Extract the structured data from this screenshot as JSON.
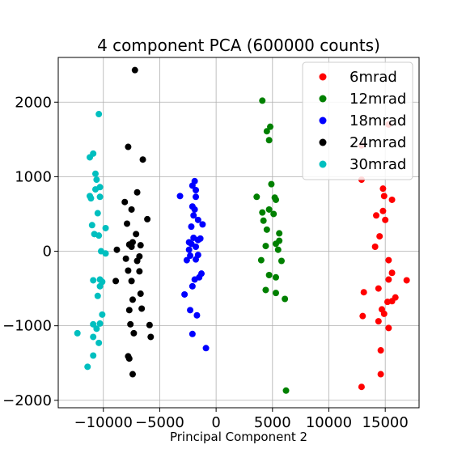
{
  "chart_data": {
    "type": "scatter",
    "title": "4 component PCA (600000 counts)",
    "xlabel": "Principal Component 2",
    "ylabel": "",
    "xlim": [
      -14000,
      18000
    ],
    "ylim": [
      -2100,
      2600
    ],
    "xticks": [
      -10000,
      -5000,
      0,
      5000,
      10000,
      15000
    ],
    "yticks": [
      -2000,
      -1000,
      0,
      1000,
      2000
    ],
    "grid": true,
    "legend_position": "top-right",
    "series": [
      {
        "name": "6mrad",
        "color": "#ff0000",
        "points": [
          [
            12900,
            1420
          ],
          [
            15300,
            1700
          ],
          [
            12900,
            960
          ],
          [
            14800,
            840
          ],
          [
            14900,
            740
          ],
          [
            15600,
            690
          ],
          [
            14800,
            540
          ],
          [
            14200,
            480
          ],
          [
            15000,
            420
          ],
          [
            14500,
            200
          ],
          [
            14100,
            60
          ],
          [
            15300,
            -120
          ],
          [
            15600,
            -290
          ],
          [
            16900,
            -390
          ],
          [
            15300,
            -380
          ],
          [
            14400,
            -500
          ],
          [
            13100,
            -550
          ],
          [
            15900,
            -620
          ],
          [
            15600,
            -670
          ],
          [
            15200,
            -680
          ],
          [
            14700,
            -780
          ],
          [
            13000,
            -870
          ],
          [
            14900,
            -840
          ],
          [
            14400,
            -940
          ],
          [
            15300,
            -1030
          ],
          [
            14600,
            -1330
          ],
          [
            14600,
            -1650
          ],
          [
            12900,
            -1820
          ]
        ]
      },
      {
        "name": "12mrad",
        "color": "#008000",
        "points": [
          [
            4100,
            2020
          ],
          [
            4500,
            1610
          ],
          [
            4800,
            1670
          ],
          [
            4700,
            1490
          ],
          [
            4900,
            900
          ],
          [
            3600,
            730
          ],
          [
            5200,
            720
          ],
          [
            5300,
            690
          ],
          [
            4100,
            520
          ],
          [
            4700,
            560
          ],
          [
            5100,
            500
          ],
          [
            4200,
            410
          ],
          [
            4500,
            290
          ],
          [
            5600,
            240
          ],
          [
            5600,
            140
          ],
          [
            5300,
            100
          ],
          [
            4400,
            70
          ],
          [
            5500,
            20
          ],
          [
            4000,
            -120
          ],
          [
            5800,
            -130
          ],
          [
            4700,
            -320
          ],
          [
            5300,
            -350
          ],
          [
            4400,
            -520
          ],
          [
            5300,
            -560
          ],
          [
            6100,
            -640
          ],
          [
            6200,
            -1870
          ]
        ]
      },
      {
        "name": "18mrad",
        "color": "#0000ff",
        "points": [
          [
            -1900,
            940
          ],
          [
            -2100,
            880
          ],
          [
            -1800,
            820
          ],
          [
            -3200,
            740
          ],
          [
            -1800,
            730
          ],
          [
            -2100,
            600
          ],
          [
            -1900,
            560
          ],
          [
            -2000,
            480
          ],
          [
            -1600,
            420
          ],
          [
            -2200,
            330
          ],
          [
            -1200,
            360
          ],
          [
            -2000,
            180
          ],
          [
            -1600,
            150
          ],
          [
            -1400,
            170
          ],
          [
            -2200,
            100
          ],
          [
            -2400,
            120
          ],
          [
            -1800,
            60
          ],
          [
            -2400,
            20
          ],
          [
            -1600,
            -50
          ],
          [
            -2300,
            -60
          ],
          [
            -1800,
            -110
          ],
          [
            -2600,
            -120
          ],
          [
            -1300,
            -300
          ],
          [
            -1500,
            -350
          ],
          [
            -1900,
            -380
          ],
          [
            -2100,
            -470
          ],
          [
            -2800,
            -580
          ],
          [
            -2300,
            -790
          ],
          [
            -1700,
            -860
          ],
          [
            -2100,
            -1110
          ],
          [
            -900,
            -1300
          ]
        ]
      },
      {
        "name": "24mrad",
        "color": "#000000",
        "points": [
          [
            -7200,
            2430
          ],
          [
            -7800,
            1400
          ],
          [
            -6500,
            1230
          ],
          [
            -7000,
            790
          ],
          [
            -8100,
            660
          ],
          [
            -7500,
            560
          ],
          [
            -6100,
            430
          ],
          [
            -7900,
            370
          ],
          [
            -7100,
            230
          ],
          [
            -7700,
            90
          ],
          [
            -7400,
            120
          ],
          [
            -7500,
            60
          ],
          [
            -6700,
            80
          ],
          [
            -8800,
            20
          ],
          [
            -6800,
            -70
          ],
          [
            -8000,
            -100
          ],
          [
            -7000,
            -130
          ],
          [
            -7800,
            -260
          ],
          [
            -6800,
            -270
          ],
          [
            -8900,
            -400
          ],
          [
            -7500,
            -400
          ],
          [
            -6700,
            -570
          ],
          [
            -7400,
            -650
          ],
          [
            -7700,
            -790
          ],
          [
            -6600,
            -770
          ],
          [
            -5900,
            -990
          ],
          [
            -7600,
            -980
          ],
          [
            -7300,
            -1100
          ],
          [
            -7800,
            -1410
          ],
          [
            -7700,
            -1440
          ],
          [
            -5800,
            -1150
          ],
          [
            -7400,
            -1650
          ]
        ]
      },
      {
        "name": "30mrad",
        "color": "#00bfbf",
        "points": [
          [
            -10400,
            1840
          ],
          [
            -10900,
            1310
          ],
          [
            -11200,
            1260
          ],
          [
            -10700,
            1040
          ],
          [
            -10600,
            960
          ],
          [
            -10300,
            860
          ],
          [
            -10700,
            830
          ],
          [
            -11200,
            740
          ],
          [
            -11100,
            710
          ],
          [
            -10300,
            730
          ],
          [
            -10500,
            510
          ],
          [
            -11000,
            350
          ],
          [
            -9800,
            310
          ],
          [
            -10800,
            230
          ],
          [
            -10400,
            210
          ],
          [
            -10200,
            0
          ],
          [
            -9800,
            -30
          ],
          [
            -10300,
            -380
          ],
          [
            -10900,
            -390
          ],
          [
            -10100,
            -410
          ],
          [
            -10300,
            -470
          ],
          [
            -10500,
            -600
          ],
          [
            -10100,
            -850
          ],
          [
            -10300,
            -970
          ],
          [
            -10900,
            -980
          ],
          [
            -12300,
            -1100
          ],
          [
            -10600,
            -1040
          ],
          [
            -10900,
            -1150
          ],
          [
            -10400,
            -1230
          ],
          [
            -10900,
            -1400
          ],
          [
            -11400,
            -1550
          ]
        ]
      }
    ]
  }
}
